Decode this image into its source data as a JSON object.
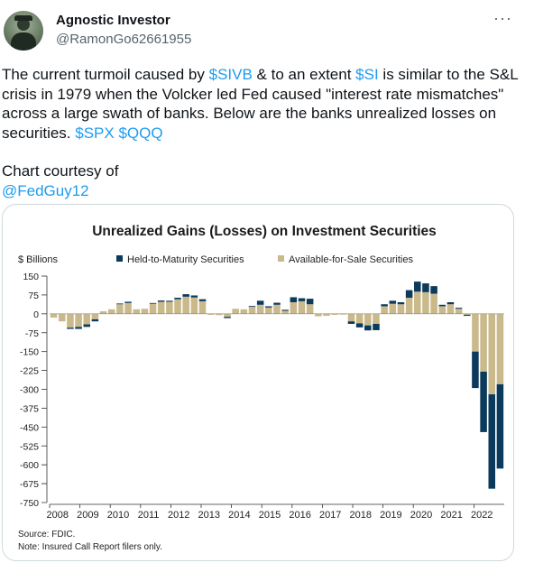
{
  "tweet": {
    "author": {
      "display_name": "Agnostic Investor",
      "handle": "@RamonGo62661955"
    },
    "more_icon": "more-horizontal-icon",
    "text": {
      "p1_a": "The current turmoil caused by ",
      "tag1": "$SIVB",
      "p1_b": " & to an extent ",
      "tag2": "$SI",
      "p1_c": " is similar to the S&L crisis in 1979 when the Volcker led Fed caused \"interest rate mismatches\" across a large swath of banks. Below are the banks unrealized losses on securities.  ",
      "tag3": "$SPX",
      "tag4": "$QQQ",
      "p2": "Chart courtesy of",
      "mention": "@FedGuy12"
    }
  },
  "colors": {
    "link": "#1d9bf0",
    "htm": "#0b3a5c",
    "afs": "#c9b98b",
    "text_secondary": "#536471"
  },
  "chart_data": {
    "type": "bar",
    "stacked": true,
    "title": "Unrealized Gains (Losses) on Investment Securities",
    "ylabel": "$ Billions",
    "ylim": [
      -750,
      150
    ],
    "yticks": [
      150,
      75,
      0,
      -75,
      -150,
      -225,
      -300,
      -375,
      -450,
      -525,
      -600,
      -675,
      -750
    ],
    "xtick_labels": [
      "2008",
      "2009",
      "2010",
      "2011",
      "2012",
      "2013",
      "2014",
      "2015",
      "2016",
      "2017",
      "2018",
      "2019",
      "2020",
      "2021",
      "2022"
    ],
    "legend": [
      "Held-to-Maturity Securities",
      "Available-for-Sale Securities"
    ],
    "legend_position": "top",
    "source": "Source: FDIC.",
    "note": "Note: Insured Call Report filers only.",
    "series": [
      {
        "name": "Available-for-Sale Securities",
        "values": [
          -15,
          -30,
          -55,
          -52,
          -42,
          -22,
          10,
          18,
          38,
          43,
          18,
          20,
          40,
          48,
          48,
          58,
          68,
          65,
          50,
          -4,
          -5,
          -12,
          20,
          18,
          28,
          36,
          25,
          36,
          12,
          46,
          50,
          38,
          -10,
          -8,
          -4,
          -3,
          -30,
          -38,
          -46,
          -40,
          30,
          40,
          38,
          64,
          88,
          86,
          80,
          30,
          38,
          20,
          -4,
          -150,
          -230,
          -320,
          -280
        ],
        "neg_ext": []
      },
      {
        "name": "Held-to-Maturity Securities",
        "values": [
          0,
          0,
          -5,
          -8,
          -10,
          -8,
          0,
          0,
          3,
          5,
          0,
          0,
          3,
          5,
          4,
          6,
          10,
          8,
          8,
          0,
          0,
          -5,
          0,
          0,
          3,
          16,
          5,
          8,
          4,
          20,
          12,
          22,
          0,
          0,
          0,
          0,
          -10,
          -16,
          -20,
          -25,
          8,
          12,
          8,
          30,
          40,
          35,
          30,
          6,
          8,
          4,
          -4,
          -145,
          -240,
          -375,
          -335
        ]
      }
    ]
  }
}
